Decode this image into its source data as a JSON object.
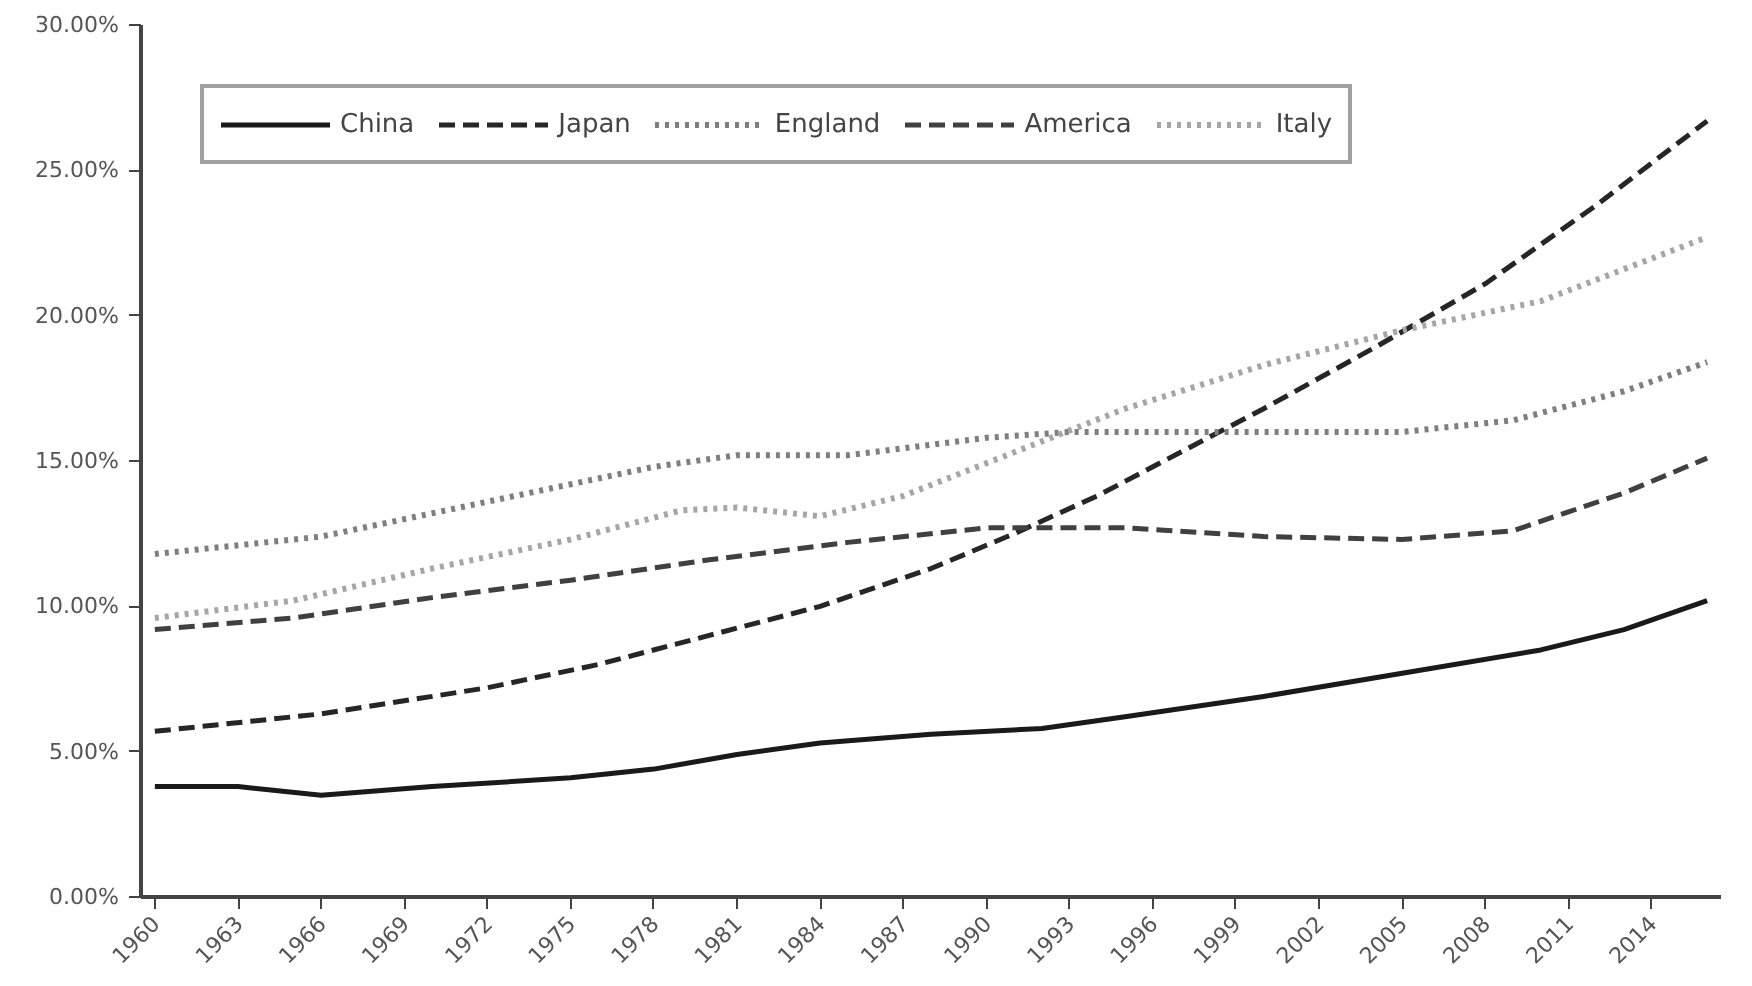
{
  "chart_data": {
    "type": "line",
    "xlim": [
      1959.5,
      2016.5
    ],
    "ylim": [
      0,
      30
    ],
    "xticks": [
      1960,
      1963,
      1966,
      1969,
      1972,
      1975,
      1978,
      1981,
      1984,
      1987,
      1990,
      1993,
      1996,
      1999,
      2002,
      2005,
      2008,
      2011,
      2014
    ],
    "yticks": [
      {
        "value": 0,
        "label": "0.00%"
      },
      {
        "value": 5,
        "label": "5.00%"
      },
      {
        "value": 10,
        "label": "10.00%"
      },
      {
        "value": 15,
        "label": "15.00%"
      },
      {
        "value": 20,
        "label": "20.00%"
      },
      {
        "value": 25,
        "label": "25.00%"
      },
      {
        "value": 30,
        "label": "30.00%"
      }
    ],
    "grid": false,
    "legend": "top left",
    "series": [
      {
        "name": "China",
        "color": "#1a1a1a",
        "line_style": "solid",
        "x": [
          1960,
          1963,
          1966,
          1970,
          1975,
          1978,
          1981,
          1984,
          1988,
          1992,
          1995,
          2000,
          2005,
          2010,
          2013,
          2016
        ],
        "values": [
          3.8,
          3.8,
          3.5,
          3.8,
          4.1,
          4.4,
          4.9,
          5.3,
          5.6,
          5.8,
          6.2,
          6.9,
          7.7,
          8.5,
          9.2,
          10.2
        ]
      },
      {
        "name": "Japan",
        "color": "#262626",
        "line_style": "dashed",
        "x": [
          1960,
          1966,
          1972,
          1976,
          1980,
          1984,
          1988,
          1991,
          1994,
          1997,
          2000,
          2004,
          2008,
          2012,
          2016
        ],
        "values": [
          5.7,
          6.3,
          7.2,
          8.0,
          9.0,
          10.0,
          11.3,
          12.5,
          13.8,
          15.3,
          16.8,
          18.9,
          21.1,
          23.8,
          26.7
        ]
      },
      {
        "name": "England",
        "color": "#7f7f7f",
        "line_style": "dotted",
        "x": [
          1960,
          1966,
          1972,
          1978,
          1981,
          1985,
          1990,
          1993,
          2000,
          2005,
          2009,
          2013,
          2016
        ],
        "values": [
          11.8,
          12.4,
          13.6,
          14.8,
          15.2,
          15.2,
          15.8,
          16.0,
          16.0,
          16.0,
          16.4,
          17.4,
          18.4
        ]
      },
      {
        "name": "America",
        "color": "#404040",
        "line_style": "dashed",
        "x": [
          1960,
          1965,
          1970,
          1975,
          1980,
          1985,
          1990,
          1995,
          2000,
          2005,
          2009,
          2013,
          2016
        ],
        "values": [
          9.2,
          9.6,
          10.3,
          10.9,
          11.6,
          12.2,
          12.7,
          12.7,
          12.4,
          12.3,
          12.6,
          13.9,
          15.1
        ]
      },
      {
        "name": "Italy",
        "color": "#a6a6a6",
        "line_style": "dotted",
        "x": [
          1960,
          1965,
          1970,
          1975,
          1979,
          1981,
          1984,
          1987,
          1991,
          1995,
          2000,
          2005,
          2010,
          2013,
          2016
        ],
        "values": [
          9.6,
          10.2,
          11.3,
          12.3,
          13.3,
          13.4,
          13.1,
          13.8,
          15.3,
          16.8,
          18.3,
          19.5,
          20.5,
          21.6,
          22.7
        ]
      }
    ]
  }
}
